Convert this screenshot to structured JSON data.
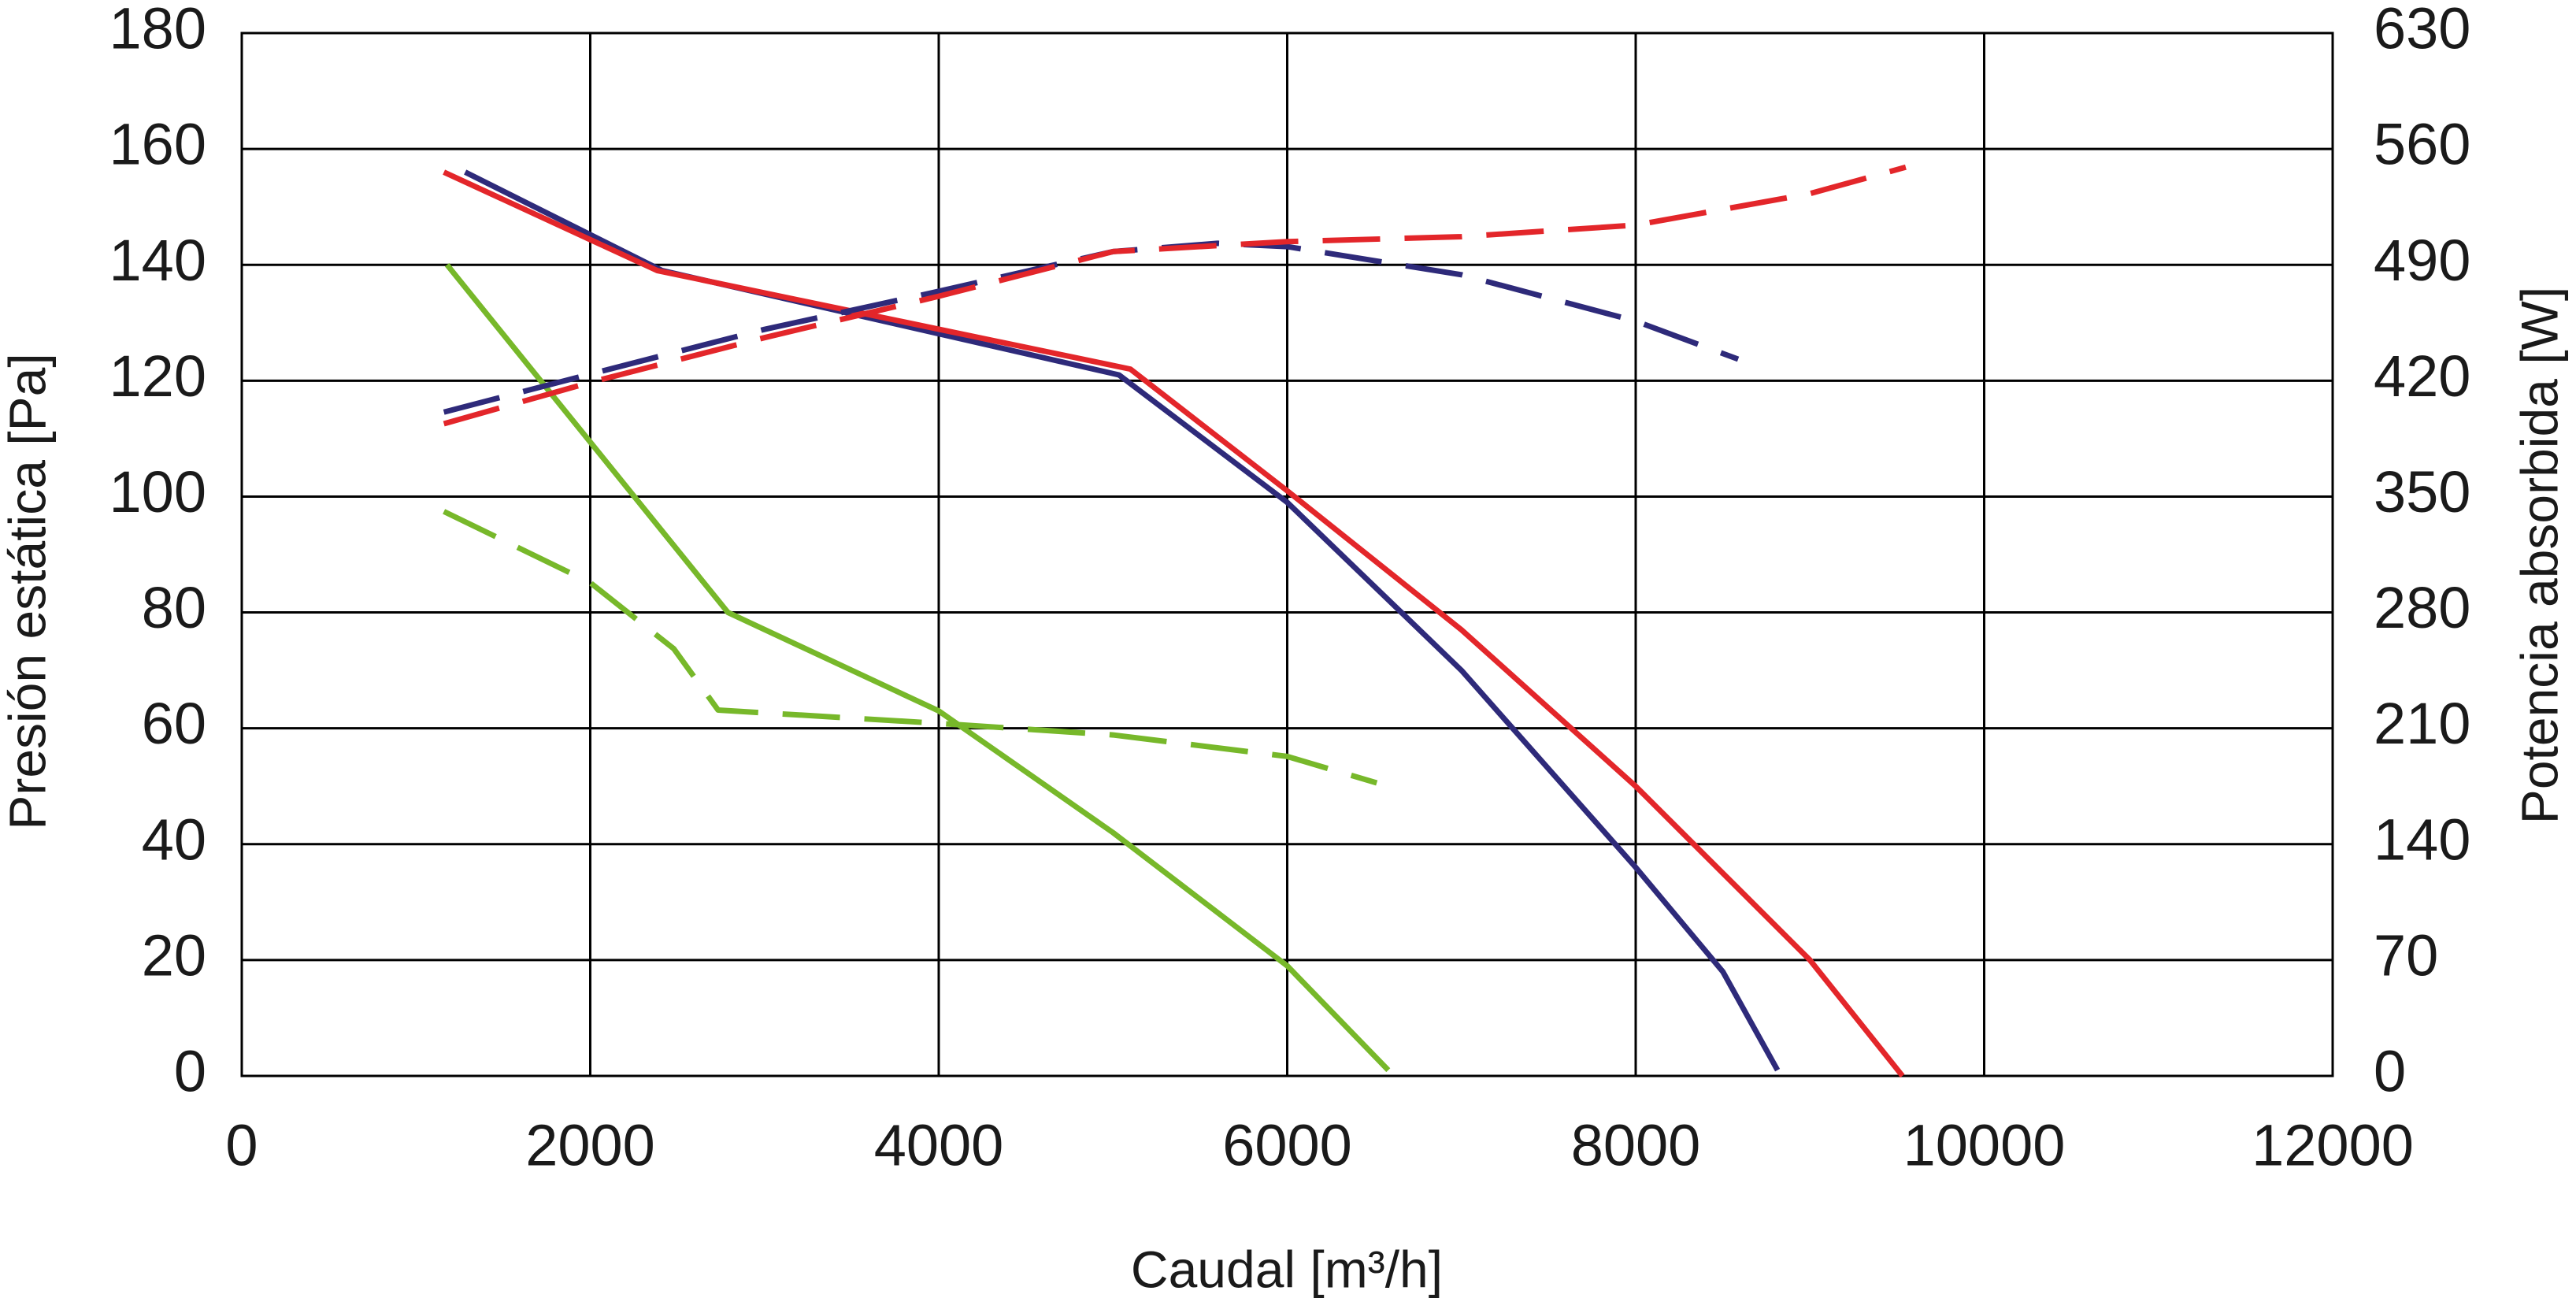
{
  "chart_data": {
    "type": "line",
    "xlabel": "Caudal [m³/h]",
    "ylabel": "Presión estática [Pa]",
    "y2label": "Potencia absorbida [W]",
    "xlim": [
      0,
      12000
    ],
    "xticks": [
      0,
      2000,
      4000,
      6000,
      8000,
      10000,
      12000
    ],
    "ylim": [
      0,
      180
    ],
    "yticks": [
      0,
      20,
      40,
      60,
      80,
      100,
      120,
      140,
      160,
      180
    ],
    "y2lim": [
      0,
      630
    ],
    "y2ticks": [
      0,
      70,
      140,
      210,
      280,
      350,
      420,
      490,
      560,
      630
    ],
    "grid": true,
    "series": [
      {
        "color": "#2e2a7a",
        "style": "solid",
        "x": [
          1282,
          2413,
          5034,
          6000,
          7000,
          8000,
          8500,
          8814
        ],
        "values": [
          156,
          139,
          121,
          99,
          70,
          36,
          18,
          1
        ]
      },
      {
        "color": "#e3262a",
        "style": "solid",
        "x": [
          1160,
          2385,
          5100,
          6000,
          7000,
          8000,
          9000,
          9531
        ],
        "values": [
          156,
          139,
          122,
          101,
          77,
          50,
          20,
          0
        ]
      },
      {
        "color": "#77b82a",
        "style": "solid",
        "x": [
          1178,
          2790,
          4000,
          5000,
          6000,
          6580
        ],
        "values": [
          140,
          80,
          63,
          42,
          19,
          1
        ]
      },
      {
        "color": "#2e2a7a",
        "style": "dashed",
        "axis": "y2",
        "x": [
          1160,
          2000,
          3000,
          4000,
          5000,
          5600,
          6000,
          7000,
          8000,
          8588
        ],
        "values": [
          401,
          424,
          451,
          474,
          498,
          503,
          501,
          484,
          456,
          433
        ]
      },
      {
        "color": "#e3262a",
        "style": "dashed",
        "axis": "y2",
        "x": [
          1160,
          2000,
          3000,
          4000,
          5000,
          6000,
          7000,
          8000,
          9000,
          9550
        ],
        "values": [
          394,
          419,
          446,
          471,
          498,
          504,
          507,
          514,
          533,
          549
        ]
      },
      {
        "color": "#77b82a",
        "style": "dashed",
        "axis": "y2",
        "x": [
          1160,
          2000,
          2480,
          2734,
          4000,
          5000,
          6000,
          6514
        ],
        "values": [
          341,
          298,
          258,
          221,
          213,
          206,
          193,
          177
        ]
      }
    ]
  }
}
